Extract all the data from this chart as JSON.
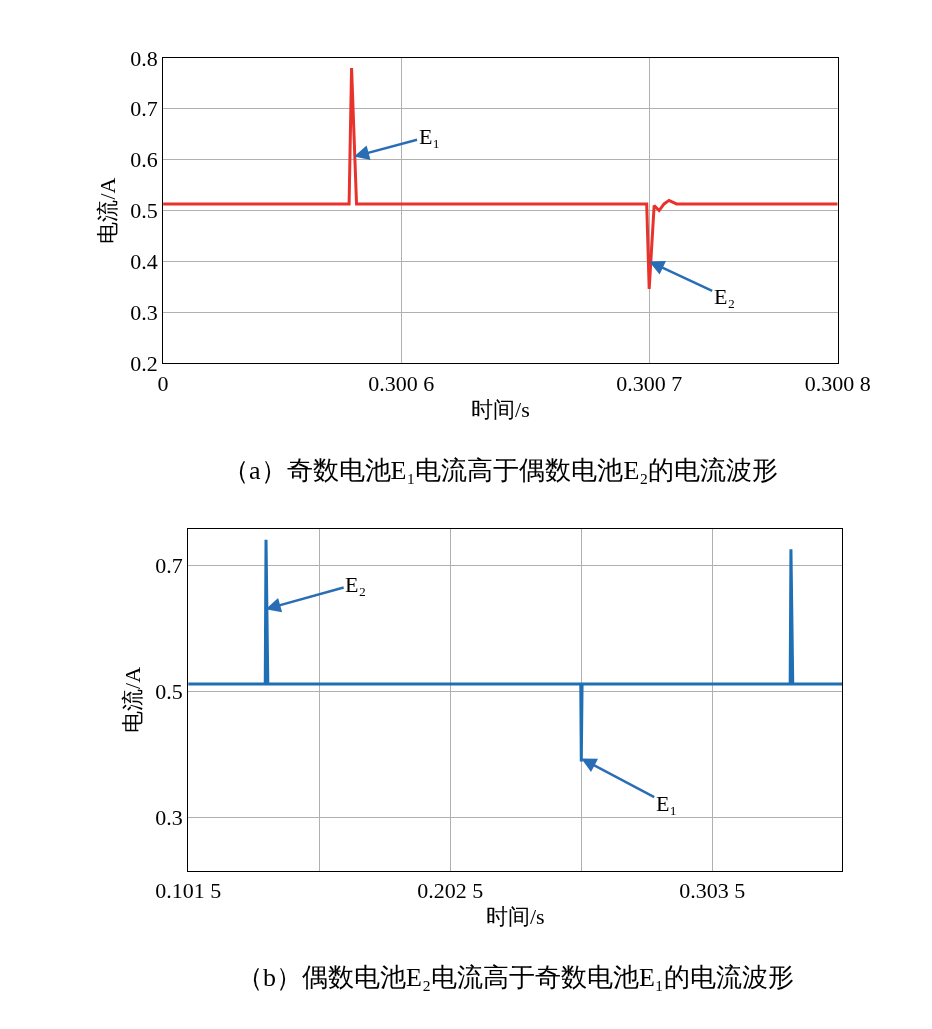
{
  "chart_data": [
    {
      "type": "line",
      "title": "（a）奇数电池E₁电流高于偶数电池E₂的电流波形",
      "xlabel": "时间/s",
      "ylabel": "电流/A",
      "xlim": [
        0.300504,
        0.300776
      ],
      "xticks": [
        {
          "value": 0.300504,
          "label": "0"
        },
        0.3006,
        0.3007,
        {
          "value": 0.300776,
          "label": "0.300 8"
        }
      ],
      "ylim": [
        0.2,
        0.8
      ],
      "yticks": [
        0.2,
        0.3,
        0.4,
        0.5,
        0.6,
        0.7,
        0.8
      ],
      "grid": true,
      "series": [
        {
          "color": "#e8322b",
          "x": [
            0.300504,
            0.300579,
            0.30058,
            0.300582,
            0.300699,
            0.3007,
            0.300702,
            0.300704,
            0.300706,
            0.300708,
            0.300711,
            0.300776
          ],
          "values": [
            0.513,
            0.513,
            0.78,
            0.513,
            0.513,
            0.346,
            0.51,
            0.5,
            0.513,
            0.52,
            0.513,
            0.513
          ]
        }
      ],
      "annotations": [
        {
          "text": "E₁",
          "x": 0.300581,
          "y": 0.606
        },
        {
          "text": "E₂",
          "x": 0.3007,
          "y": 0.4
        }
      ]
    },
    {
      "type": "line",
      "title": "（b）偶数电池E₂电流高于奇数电池E₁的电流波形",
      "xlabel": "时间/s",
      "ylabel": "电流/A",
      "xlim": [
        0.1015,
        0.3536
      ],
      "xticks": [
        0.1015,
        {
          "value": 0.152,
          "label": null
        },
        0.2025,
        {
          "value": 0.253,
          "label": null
        },
        0.3035
      ],
      "ylim": [
        0.215,
        0.757
      ],
      "yticks": [
        0.3,
        0.5,
        0.7
      ],
      "grid": true,
      "series": [
        {
          "color": "#1f6fb4",
          "x": [
            0.1015,
            0.1312,
            0.1315,
            0.1322,
            0.2528,
            0.253,
            0.2533,
            0.3335,
            0.3338,
            0.3345,
            0.3536
          ],
          "values": [
            0.511,
            0.511,
            0.74,
            0.511,
            0.511,
            0.388,
            0.511,
            0.511,
            0.725,
            0.511,
            0.511
          ]
        }
      ],
      "annotations": [
        {
          "text": "E₂",
          "x": 0.13136,
          "y": 0.63
        },
        {
          "text": "E₁",
          "x": 0.25299,
          "y": 0.393
        }
      ]
    }
  ]
}
